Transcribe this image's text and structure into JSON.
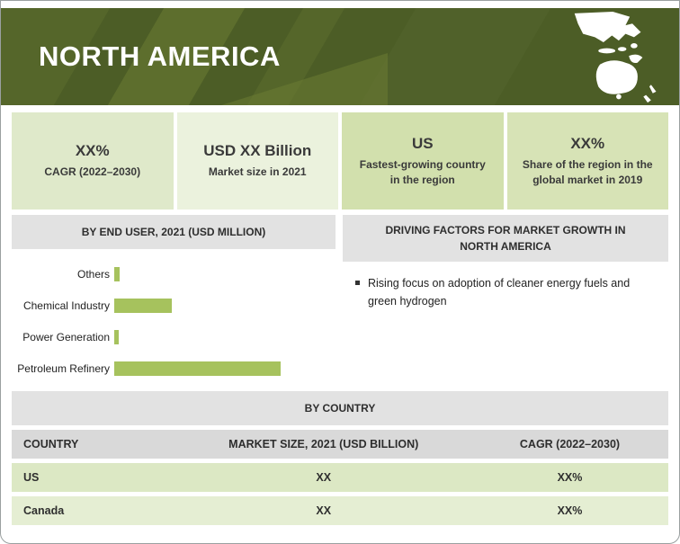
{
  "banner": {
    "title": "NORTH AMERICA"
  },
  "stats": [
    {
      "value": "XX%",
      "label": "CAGR (2022–2030)"
    },
    {
      "value": "USD XX Billion",
      "label": "Market size in 2021"
    },
    {
      "value": "US",
      "label": "Fastest-growing country in the region"
    },
    {
      "value": "XX%",
      "label": "Share of the region in the global market in 2019"
    }
  ],
  "chart_data": {
    "type": "bar",
    "orientation": "horizontal",
    "title": "BY END USER, 2021 (USD MILLION)",
    "categories": [
      "Others",
      "Chemical Industry",
      "Power Generation",
      "Petroleum Refinery"
    ],
    "values": [
      6,
      64,
      5,
      185
    ],
    "value_units": "relative bar length (numeric axis not labeled in source)",
    "xlabel": "",
    "ylabel": "",
    "bar_color": "#a6c25d",
    "grid": false,
    "legend": false
  },
  "driving_factors": {
    "title": "DRIVING FACTORS FOR MARKET GROWTH IN NORTH AMERICA",
    "bullets": [
      "Rising focus on adoption of cleaner energy fuels and green hydrogen"
    ]
  },
  "by_country": {
    "title": "BY COUNTRY",
    "columns": [
      "COUNTRY",
      "MARKET SIZE, 2021 (USD BILLION)",
      "CAGR (2022–2030)"
    ],
    "rows": [
      [
        "US",
        "XX",
        "XX%"
      ],
      [
        "Canada",
        "XX",
        "XX%"
      ]
    ]
  },
  "colors": {
    "banner_green": "#4c5d26",
    "banner_green_light": "#6c7c33",
    "bar_green": "#a6c25d",
    "card_green_1": "#dfe9ca",
    "card_green_2": "#ebf2dd",
    "card_green_3": "#d2e0ad",
    "card_green_4": "#d7e3b6",
    "header_gray": "#e2e2e2",
    "table_header_gray": "#d9d9d9",
    "row_green_1": "#dce8c4",
    "row_green_2": "#e5eed3",
    "text_dark": "#2e2e2e"
  }
}
